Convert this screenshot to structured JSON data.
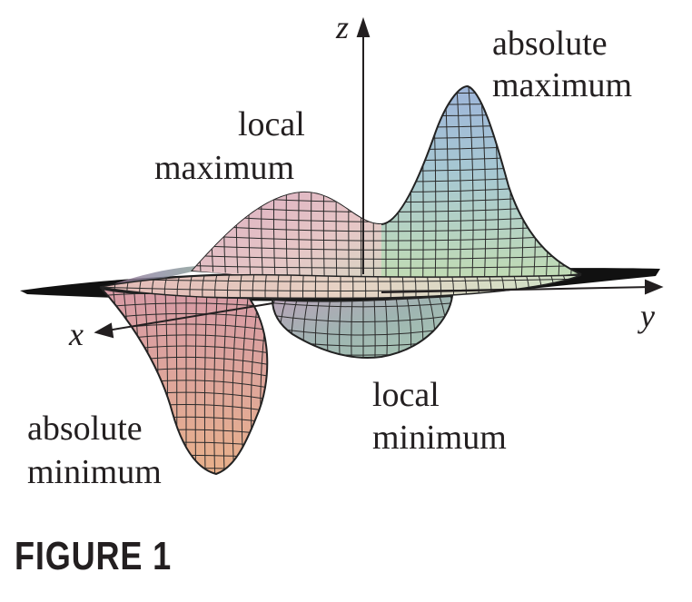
{
  "axes": {
    "x": "x",
    "y": "y",
    "z": "z"
  },
  "labels": {
    "absolute_maximum": [
      "absolute",
      "maximum"
    ],
    "local_maximum": [
      "local",
      "maximum"
    ],
    "local_minimum": [
      "local",
      "minimum"
    ],
    "absolute_minimum": [
      "absolute",
      "minimum"
    ]
  },
  "caption": "FIGURE 1",
  "colors": {
    "ink": "#231f20",
    "mesh": "#2a2a2a"
  }
}
